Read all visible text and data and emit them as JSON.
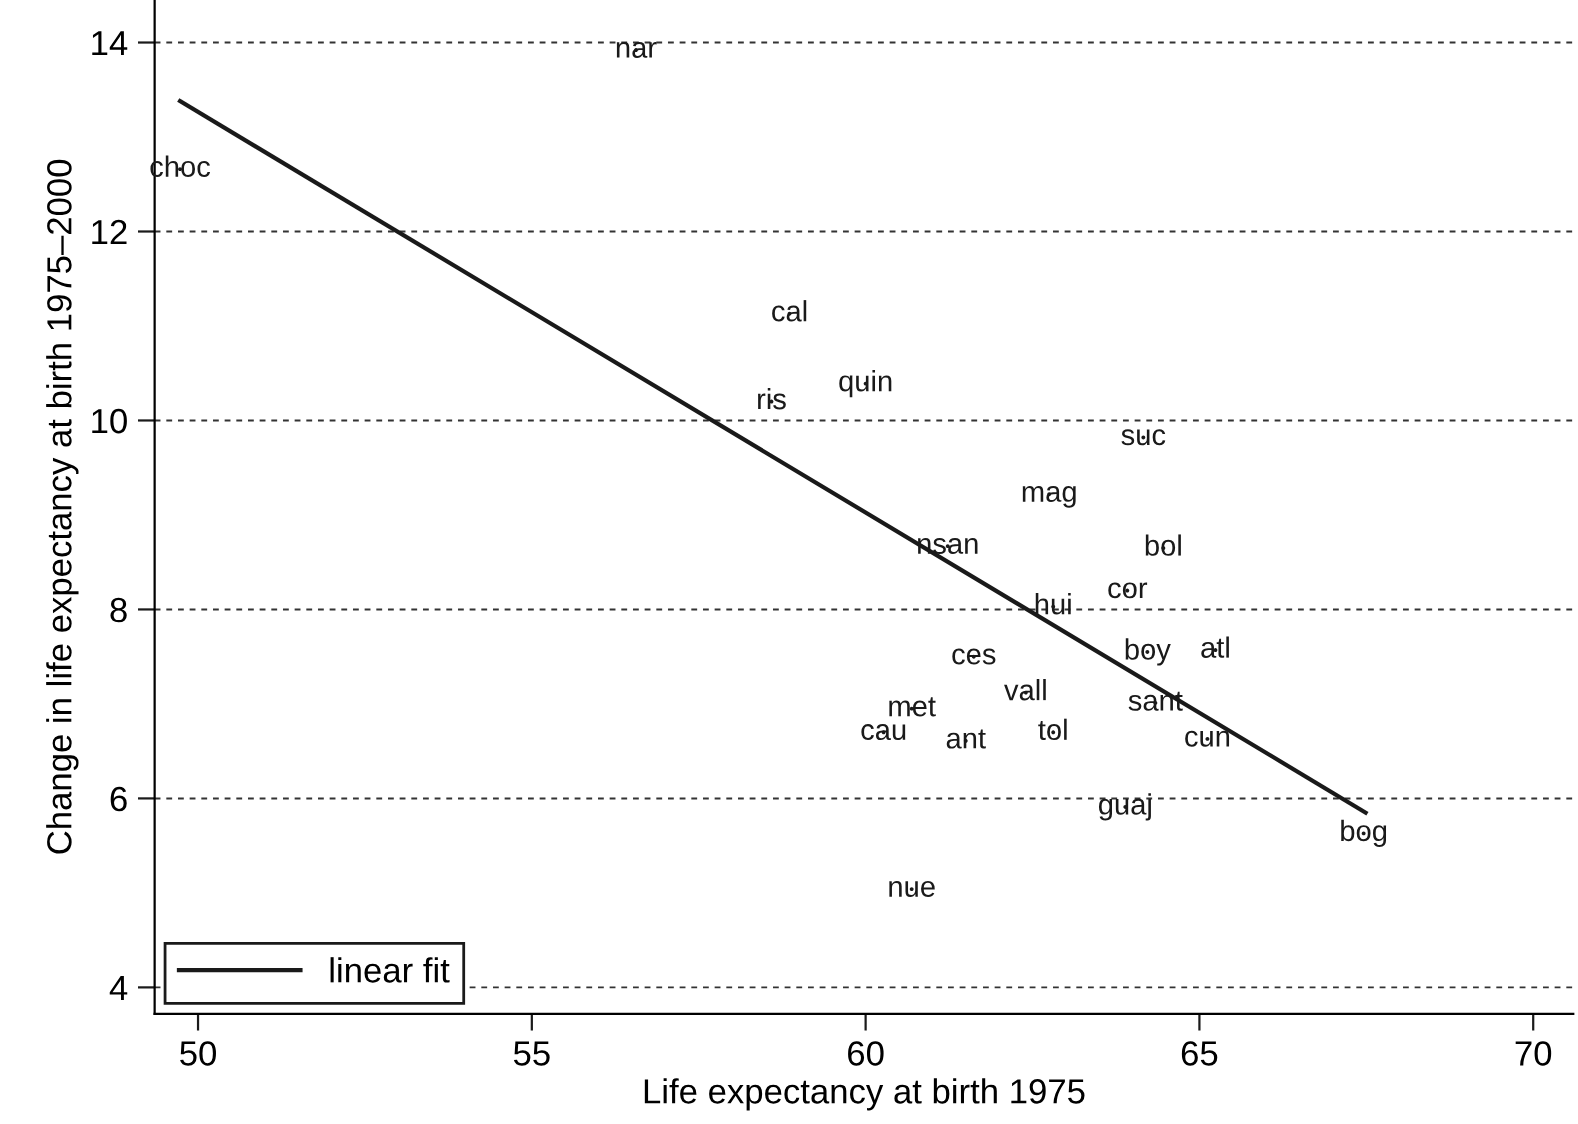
{
  "chart_data": {
    "type": "scatter",
    "xlabel": "Life expectancy at birth 1975",
    "ylabel": "Change in life expectancy at birth 1975–2000",
    "xlim": [
      49.35,
      70.6
    ],
    "ylim": [
      3.72,
      14.45
    ],
    "xticks": [
      50,
      55,
      60,
      65,
      70
    ],
    "yticks": [
      4,
      6,
      8,
      10,
      12,
      14
    ],
    "grid": "y",
    "legend": "bottom left",
    "series": [
      {
        "color": "#1a1a1a",
        "x": [
          56.56,
          49.73,
          58.86,
          58.59,
          60.0,
          64.16,
          62.75,
          61.23,
          64.46,
          63.92,
          62.81,
          64.22,
          65.24,
          61.62,
          62.4,
          64.34,
          60.69,
          60.27,
          61.5,
          62.81,
          65.12,
          63.89,
          67.46,
          60.69
        ],
        "values": [
          13.92,
          12.66,
          11.13,
          10.2,
          10.39,
          9.82,
          9.22,
          8.67,
          8.65,
          8.2,
          8.03,
          7.55,
          7.57,
          7.5,
          7.12,
          7.01,
          6.95,
          6.7,
          6.61,
          6.7,
          6.63,
          5.91,
          5.63,
          5.04
        ],
        "value_labels": [
          "nar",
          "choc",
          "cal",
          "ris",
          "quin",
          "suc",
          "mag",
          "nsan",
          "bol",
          "cor",
          "hui",
          "boy",
          "atl",
          "ces",
          "vall",
          "sant",
          "met",
          "cau",
          "ant",
          "tol",
          "cun",
          "guaj",
          "bog",
          "nue"
        ]
      },
      {
        "type": "line",
        "name": "linear fit",
        "color": "#1a1a1a",
        "x": [
          49.73,
          67.49
        ],
        "values": [
          13.38,
          5.85
        ]
      }
    ]
  }
}
